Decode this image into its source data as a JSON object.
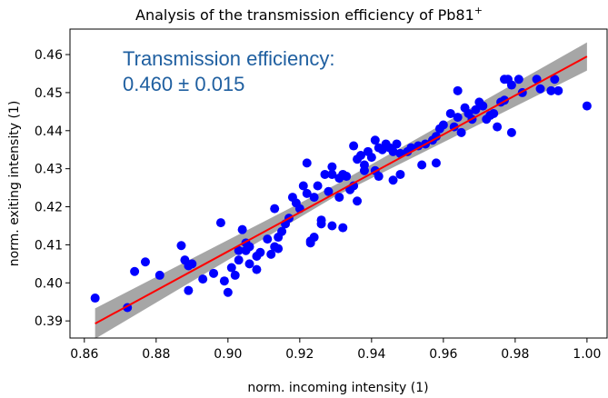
{
  "chart_data": {
    "type": "scatter",
    "title": "Analysis of the transmission efficiency of Pb81",
    "title_superscript": "+",
    "x_label": "norm. incoming intensity (1)",
    "y_label": "norm. exiting intensity (1)",
    "annotation": [
      "Transmission efficiency:",
      "0.460 ± 0.015"
    ],
    "xlim": [
      0.856,
      1.0056
    ],
    "ylim": [
      0.3855,
      0.4667
    ],
    "xticks": [
      0.86,
      0.88,
      {
        "value": 0.9,
        "label": "0.90"
      },
      0.92,
      0.94,
      0.96,
      0.98,
      {
        "value": 1.0,
        "label": "1.00"
      }
    ],
    "yticks": [
      0.39,
      {
        "value": 0.4,
        "label": "0.40"
      },
      0.41,
      0.42,
      0.43,
      0.44,
      0.45,
      0.46
    ],
    "color": "#0000ff",
    "fit": {
      "color": "#ff0000",
      "x": [
        0.863,
        1.0
      ],
      "y": [
        0.3893,
        0.4595
      ]
    },
    "band": {
      "color": "#a6a6a6",
      "x": [
        0.863,
        0.93,
        1.0
      ],
      "lower": [
        0.3853,
        0.4228,
        0.4558
      ],
      "upper": [
        0.3933,
        0.4258,
        0.4632
      ]
    },
    "x": [
      0.863,
      0.872,
      0.874,
      0.877,
      0.881,
      0.887,
      0.888,
      0.889,
      0.89,
      0.889,
      0.893,
      0.896,
      0.898,
      0.899,
      0.9,
      0.901,
      0.902,
      0.903,
      0.903,
      0.904,
      0.905,
      0.905,
      0.906,
      0.906,
      0.908,
      0.908,
      0.909,
      0.911,
      0.912,
      0.913,
      0.913,
      0.914,
      0.914,
      0.915,
      0.916,
      0.917,
      0.918,
      0.919,
      0.92,
      0.921,
      0.922,
      0.922,
      0.923,
      0.923,
      0.924,
      0.924,
      0.925,
      0.926,
      0.926,
      0.927,
      0.928,
      0.929,
      0.929,
      0.929,
      0.931,
      0.931,
      0.932,
      0.932,
      0.933,
      0.934,
      0.935,
      0.935,
      0.936,
      0.936,
      0.937,
      0.938,
      0.938,
      0.939,
      0.94,
      0.941,
      0.941,
      0.942,
      0.942,
      0.943,
      0.944,
      0.945,
      0.946,
      0.946,
      0.947,
      0.948,
      0.948,
      0.95,
      0.951,
      0.953,
      0.954,
      0.955,
      0.957,
      0.958,
      0.958,
      0.959,
      0.96,
      0.962,
      0.963,
      0.964,
      0.964,
      0.965,
      0.966,
      0.967,
      0.968,
      0.969,
      0.97,
      0.971,
      0.972,
      0.973,
      0.974,
      0.975,
      0.976,
      0.977,
      0.977,
      0.978,
      0.979,
      0.979,
      0.981,
      0.982,
      0.986,
      0.987,
      0.99,
      0.991,
      0.992,
      1.0
    ],
    "values": [
      0.396,
      0.3935,
      0.403,
      0.4055,
      0.402,
      0.4098,
      0.406,
      0.4045,
      0.405,
      0.398,
      0.401,
      0.4025,
      0.4158,
      0.4005,
      0.3975,
      0.404,
      0.402,
      0.406,
      0.4085,
      0.414,
      0.4105,
      0.4085,
      0.4095,
      0.405,
      0.407,
      0.4035,
      0.408,
      0.4115,
      0.4075,
      0.4195,
      0.4095,
      0.409,
      0.412,
      0.4135,
      0.4155,
      0.417,
      0.4225,
      0.421,
      0.4195,
      0.4255,
      0.4315,
      0.4235,
      0.411,
      0.4105,
      0.412,
      0.4225,
      0.4255,
      0.4155,
      0.4165,
      0.4285,
      0.424,
      0.4285,
      0.4305,
      0.415,
      0.4225,
      0.4275,
      0.4285,
      0.4145,
      0.428,
      0.4245,
      0.4255,
      0.436,
      0.4325,
      0.4215,
      0.4335,
      0.4295,
      0.431,
      0.4345,
      0.433,
      0.4295,
      0.4375,
      0.428,
      0.4355,
      0.435,
      0.4365,
      0.4355,
      0.4345,
      0.427,
      0.4365,
      0.434,
      0.4285,
      0.4345,
      0.4355,
      0.436,
      0.431,
      0.4365,
      0.4375,
      0.4315,
      0.4385,
      0.4405,
      0.4415,
      0.4445,
      0.441,
      0.4435,
      0.4505,
      0.4395,
      0.446,
      0.4445,
      0.443,
      0.4455,
      0.4475,
      0.4465,
      0.443,
      0.444,
      0.4445,
      0.441,
      0.4475,
      0.4535,
      0.448,
      0.4535,
      0.4395,
      0.452,
      0.4535,
      0.45,
      0.4535,
      0.451,
      0.4505,
      0.4535,
      0.4505,
      0.4465
    ]
  }
}
